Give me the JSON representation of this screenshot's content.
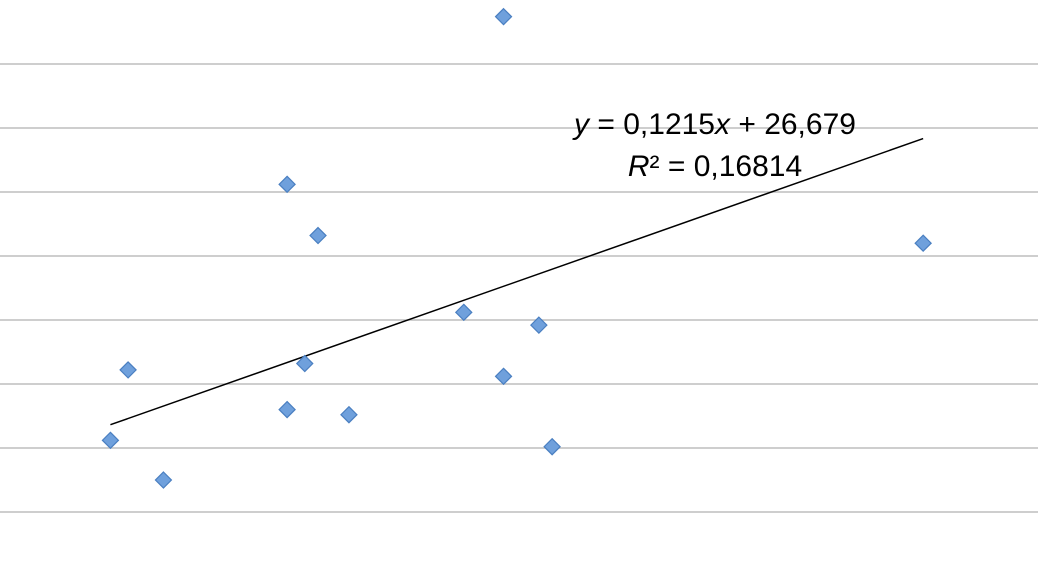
{
  "chart_data": {
    "type": "scatter",
    "title": "",
    "xlabel": "",
    "ylabel": "",
    "grid": true,
    "series": [
      {
        "marker": "diamond",
        "color": "#6fa0dc",
        "points": [
          {
            "x": -40,
            "y": 20.6
          },
          {
            "x": -36,
            "y": 26.1
          },
          {
            "x": -28,
            "y": 17.5
          },
          {
            "x": 0,
            "y": 23.0
          },
          {
            "x": 0,
            "y": 40.6
          },
          {
            "x": 4,
            "y": 26.6
          },
          {
            "x": 7,
            "y": 36.6
          },
          {
            "x": 14,
            "y": 22.6
          },
          {
            "x": 40,
            "y": 30.6
          },
          {
            "x": 49,
            "y": 25.6
          },
          {
            "x": 49,
            "y": 53.7
          },
          {
            "x": 57,
            "y": 29.6
          },
          {
            "x": 60,
            "y": 20.1
          },
          {
            "x": 144,
            "y": 36.0
          }
        ]
      }
    ],
    "trendline": {
      "slope": 0.1215,
      "intercept": 26.679,
      "x_range": [
        -40,
        144
      ],
      "color": "#000000"
    },
    "annotation": {
      "equation_prefix": "y",
      "equation_mid": " = 0,1215",
      "equation_x": "x",
      "equation_suffix": " + 26,679",
      "r2_label": "R",
      "r2_value": "² = 0,16814"
    },
    "ylim": [
      10,
      55
    ],
    "xlim": [
      -65,
      170
    ],
    "y_gridlines": [
      15,
      20,
      25,
      30,
      35,
      40,
      45,
      50
    ]
  }
}
